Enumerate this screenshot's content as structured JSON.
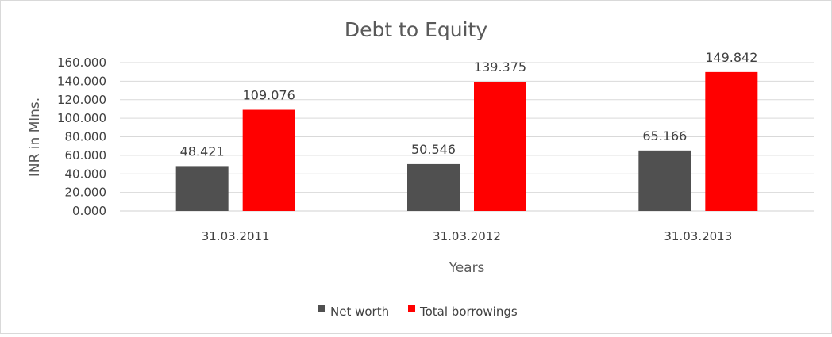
{
  "chart_data": {
    "type": "bar",
    "title": "Debt to Equity",
    "xlabel": "Years",
    "ylabel": "INR in Mlns.",
    "categories": [
      "31.03.2011",
      "31.03.2012",
      "31.03.2013"
    ],
    "series": [
      {
        "name": "Net worth",
        "color": "#505050",
        "values": [
          48.421,
          50.546,
          65.166
        ],
        "labels": [
          "48.421",
          "50.546",
          "65.166"
        ]
      },
      {
        "name": "Total borrowings",
        "color": "#ff0000",
        "values": [
          109.076,
          139.375,
          149.842
        ],
        "labels": [
          "109.076",
          "139.375",
          "149.842"
        ]
      }
    ],
    "ylim": [
      0,
      160
    ],
    "yticks": [
      0,
      20,
      40,
      60,
      80,
      100,
      120,
      140,
      160
    ],
    "ytick_labels": [
      "0.000",
      "20.000",
      "40.000",
      "60.000",
      "80.000",
      "100.000",
      "120.000",
      "140.000",
      "160.000"
    ],
    "grid": true,
    "legend_position": "bottom"
  }
}
